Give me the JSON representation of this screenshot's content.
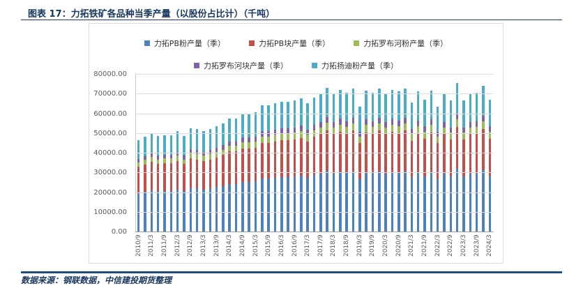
{
  "header": {
    "title": "图表 17：力拓铁矿各品种当季产量（以股份占比计）（千吨）"
  },
  "footer": {
    "source": "数据来源：钢联数据，中信建投期货整理"
  },
  "chart_data": {
    "type": "bar",
    "stacked": true,
    "grid": true,
    "legend_position": "top",
    "legend_rows": [
      3,
      2
    ],
    "ylim": [
      0,
      80000
    ],
    "ytick_interval": 10000,
    "ytick_labels": [
      "80000.00",
      "70000.00",
      "60000.00",
      "50000.00",
      "40000.00",
      "30000.00",
      "20000.00",
      "10000.00",
      "0.00"
    ],
    "xtick_label_every": 2,
    "categories": [
      "2010/9",
      "2010/12",
      "2011/3",
      "2011/6",
      "2011/9",
      "2011/12",
      "2012/3",
      "2012/6",
      "2012/9",
      "2012/12",
      "2013/3",
      "2013/6",
      "2013/9",
      "2013/12",
      "2014/3",
      "2014/6",
      "2014/9",
      "2014/12",
      "2015/3",
      "2015/6",
      "2015/9",
      "2015/12",
      "2016/3",
      "2016/6",
      "2016/9",
      "2016/12",
      "2017/3",
      "2017/6",
      "2017/9",
      "2017/12",
      "2018/3",
      "2018/6",
      "2018/9",
      "2018/12",
      "2019/3",
      "2019/6",
      "2019/9",
      "2019/12",
      "2020/3",
      "2020/6",
      "2020/9",
      "2020/12",
      "2021/3",
      "2021/6",
      "2021/9",
      "2021/12",
      "2022/3",
      "2022/6",
      "2022/9",
      "2022/12",
      "2023/3",
      "2023/6",
      "2023/9",
      "2023/12",
      "2024/3"
    ],
    "series": [
      {
        "name": "力拓PB粉产量（季）",
        "color": "#4F81BD",
        "values": [
          19500,
          20200,
          21000,
          20400,
          20600,
          20600,
          21400,
          20400,
          22100,
          21800,
          21400,
          21800,
          22500,
          23100,
          24200,
          24200,
          25200,
          25200,
          25400,
          26900,
          26900,
          27300,
          27700,
          27700,
          27900,
          28400,
          27300,
          28600,
          29400,
          30700,
          29400,
          30200,
          29600,
          30500,
          26700,
          30000,
          29600,
          30500,
          29400,
          30200,
          29800,
          30500,
          27500,
          29800,
          28100,
          30000,
          26700,
          29400,
          27900,
          31700,
          27900,
          29400,
          29600,
          31100,
          28100
        ]
      },
      {
        "name": "力拓PB块产量（季）",
        "color": "#C0504D",
        "values": [
          13300,
          13700,
          14300,
          13800,
          14000,
          14000,
          14500,
          13800,
          15000,
          14800,
          14500,
          14800,
          15200,
          15700,
          16400,
          16400,
          17100,
          17100,
          17200,
          18200,
          18200,
          18500,
          18800,
          18800,
          19000,
          19200,
          18500,
          19400,
          20000,
          20800,
          20000,
          20500,
          20100,
          20700,
          18100,
          20400,
          20100,
          20700,
          20000,
          20500,
          20200,
          20700,
          18700,
          20200,
          19100,
          20400,
          18100,
          20000,
          19000,
          21500,
          19000,
          20000,
          20100,
          21100,
          19100
        ]
      },
      {
        "name": "力拓罗布河粉产量（季）",
        "color": "#9BBB59",
        "values": [
          2300,
          2400,
          2500,
          2400,
          2500,
          2500,
          2600,
          2400,
          2600,
          2600,
          2600,
          2600,
          2700,
          2800,
          2900,
          2900,
          3000,
          3000,
          3000,
          3200,
          3200,
          3300,
          3300,
          3300,
          3300,
          3400,
          3300,
          3400,
          3500,
          3700,
          3500,
          3600,
          3500,
          3600,
          3200,
          3600,
          3500,
          3600,
          3500,
          3600,
          3600,
          3600,
          3300,
          3600,
          3400,
          3600,
          3200,
          3500,
          3300,
          3800,
          3300,
          3500,
          3500,
          3700,
          3400
        ]
      },
      {
        "name": "力拓罗布河块产量（季）",
        "color": "#8064A2",
        "values": [
          1900,
          1900,
          2000,
          1900,
          2000,
          2000,
          2000,
          1900,
          2100,
          2100,
          2000,
          2100,
          2100,
          2200,
          2300,
          2300,
          2400,
          2400,
          2400,
          2600,
          2600,
          2600,
          2600,
          2600,
          2700,
          2700,
          2600,
          2700,
          2800,
          2900,
          2800,
          2900,
          2800,
          2900,
          2500,
          2900,
          2800,
          2900,
          2800,
          2900,
          2800,
          2900,
          2600,
          2800,
          2700,
          2900,
          2500,
          2800,
          2700,
          3000,
          2700,
          2800,
          2800,
          3000,
          2700
        ]
      },
      {
        "name": "力拓扬迪粉产量（季）",
        "color": "#4BACC6",
        "values": [
          9500,
          9800,
          10200,
          10000,
          9900,
          9900,
          10500,
          10000,
          10700,
          10700,
          10500,
          10700,
          11000,
          11200,
          11700,
          11700,
          12300,
          12300,
          12500,
          13100,
          13100,
          13300,
          13600,
          13600,
          13600,
          13800,
          13300,
          13900,
          14300,
          14900,
          14300,
          14800,
          14500,
          14800,
          13000,
          14600,
          14500,
          14800,
          14300,
          14800,
          14600,
          14800,
          13400,
          14600,
          13700,
          14600,
          13000,
          14300,
          13600,
          15500,
          13600,
          14300,
          14500,
          15100,
          13700
        ]
      }
    ]
  }
}
